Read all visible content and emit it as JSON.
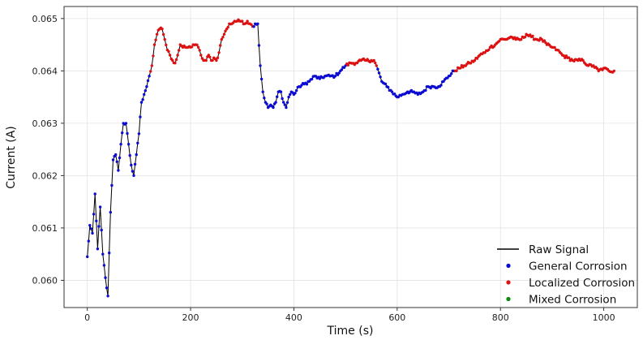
{
  "chart_data": {
    "type": "line",
    "xlabel": "Time (s)",
    "ylabel": "Current (A)",
    "xlim": [
      -45,
      1065
    ],
    "ylim": [
      0.05948,
      0.06523
    ],
    "xticks": [
      0,
      200,
      400,
      600,
      800,
      1000
    ],
    "xtick_labels": [
      "0",
      "200",
      "400",
      "600",
      "800",
      "1000"
    ],
    "yticks": [
      0.06,
      0.061,
      0.062,
      0.063,
      0.064,
      0.065
    ],
    "ytick_labels": [
      "0.060",
      "0.061",
      "0.062",
      "0.063",
      "0.064",
      "0.065"
    ],
    "grid": true,
    "legend_position": "lower-right",
    "colors": {
      "raw": "#000000",
      "general": "#0a0ad2",
      "localized": "#dd1111",
      "mixed": "#0a8a0a"
    },
    "legend": [
      {
        "label": "Raw Signal",
        "marker": "line",
        "color": "#000000"
      },
      {
        "label": "General Corrosion",
        "marker": "dot",
        "color": "#0a0ad2"
      },
      {
        "label": "Localized Corrosion",
        "marker": "dot",
        "color": "#dd1111"
      },
      {
        "label": "Mixed Corrosion",
        "marker": "dot",
        "color": "#0a8a0a"
      }
    ],
    "series": [
      {
        "name": "Raw Signal",
        "x": [
          0,
          5,
          10,
          15,
          20,
          25,
          30,
          35,
          40,
          45,
          50,
          55,
          60,
          65,
          70,
          75,
          80,
          85,
          90,
          95,
          100,
          105,
          110,
          115,
          120,
          125,
          130,
          135,
          140,
          145,
          150,
          155,
          160,
          165,
          170,
          175,
          180,
          185,
          190,
          195,
          200,
          205,
          210,
          215,
          220,
          225,
          230,
          235,
          240,
          245,
          250,
          255,
          260,
          265,
          270,
          275,
          280,
          285,
          290,
          295,
          300,
          305,
          310,
          315,
          320,
          325,
          330,
          335,
          340,
          345,
          350,
          355,
          360,
          365,
          370,
          375,
          380,
          385,
          390,
          395,
          400,
          410,
          420,
          430,
          440,
          450,
          460,
          470,
          480,
          490,
          500,
          510,
          520,
          530,
          540,
          550,
          555,
          560,
          570,
          580,
          590,
          600,
          610,
          620,
          630,
          640,
          650,
          660,
          670,
          680,
          690,
          700,
          710,
          720,
          730,
          740,
          750,
          760,
          770,
          780,
          790,
          800,
          810,
          820,
          830,
          840,
          850,
          860,
          870,
          880,
          890,
          900,
          910,
          920,
          930,
          940,
          950,
          960,
          970,
          980,
          990,
          1000,
          1010,
          1020
        ],
        "y": [
          0.06045,
          0.06105,
          0.0609,
          0.06165,
          0.0606,
          0.0614,
          0.0605,
          0.06005,
          0.0597,
          0.0613,
          0.0623,
          0.0624,
          0.0621,
          0.0626,
          0.063,
          0.063,
          0.0626,
          0.0622,
          0.062,
          0.0624,
          0.0628,
          0.0634,
          0.06355,
          0.0637,
          0.0639,
          0.0641,
          0.0645,
          0.0647,
          0.0648,
          0.0648,
          0.0646,
          0.0644,
          0.0643,
          0.0642,
          0.06415,
          0.0643,
          0.0645,
          0.06445,
          0.06445,
          0.06445,
          0.06445,
          0.0645,
          0.0645,
          0.06445,
          0.0643,
          0.0642,
          0.0642,
          0.0643,
          0.0642,
          0.06425,
          0.0642,
          0.06435,
          0.0646,
          0.0647,
          0.0648,
          0.0649,
          0.0649,
          0.06495,
          0.06495,
          0.06495,
          0.06495,
          0.0649,
          0.06495,
          0.0649,
          0.06485,
          0.0649,
          0.0649,
          0.0641,
          0.0636,
          0.0634,
          0.0633,
          0.06335,
          0.0633,
          0.0634,
          0.0636,
          0.0636,
          0.0634,
          0.0633,
          0.0635,
          0.0636,
          0.06355,
          0.0637,
          0.06375,
          0.0638,
          0.0639,
          0.06385,
          0.0639,
          0.0639,
          0.0639,
          0.064,
          0.0641,
          0.06415,
          0.06415,
          0.0642,
          0.0642,
          0.0642,
          0.0642,
          0.0641,
          0.0638,
          0.0637,
          0.0636,
          0.0635,
          0.06355,
          0.0636,
          0.0636,
          0.06355,
          0.0636,
          0.0637,
          0.0637,
          0.0637,
          0.0638,
          0.0639,
          0.064,
          0.06405,
          0.0641,
          0.06415,
          0.0642,
          0.0643,
          0.06435,
          0.06445,
          0.0645,
          0.0646,
          0.0646,
          0.06465,
          0.0646,
          0.0646,
          0.0647,
          0.06465,
          0.0646,
          0.0646,
          0.0645,
          0.06445,
          0.0644,
          0.0643,
          0.06425,
          0.0642,
          0.0642,
          0.0642,
          0.0641,
          0.0641,
          0.064,
          0.06405,
          0.064,
          0.064
        ]
      }
    ],
    "class_segments": [
      {
        "class": "general",
        "x_range": [
          0,
          120
        ]
      },
      {
        "class": "localized",
        "x_range": [
          120,
          320
        ]
      },
      {
        "class": "general",
        "x_range": [
          320,
          500
        ]
      },
      {
        "class": "localized",
        "x_range": [
          500,
          560
        ]
      },
      {
        "class": "general",
        "x_range": [
          560,
          710
        ]
      },
      {
        "class": "localized",
        "x_range": [
          710,
          1020
        ]
      }
    ]
  }
}
